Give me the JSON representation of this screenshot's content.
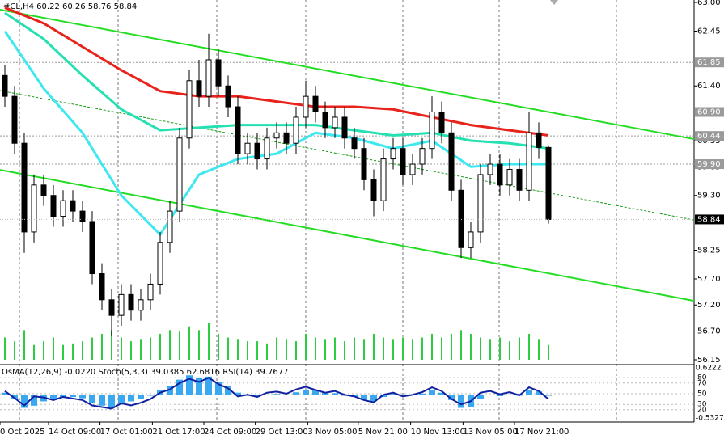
{
  "chart_data": {
    "type": "candlestick",
    "header": "#CL,H4  60.22 60.26 58.76 58.84",
    "indicator_header": "OsMA(12,26,9) -0.0220  Stoch(5,3,3) 39.0385 62.6816  RSI(14) 39.7677",
    "xlim": [
      -0.5,
      71
    ],
    "ylim": [
      56.15,
      63.0
    ],
    "yticks": [
      {
        "value": 63.0,
        "label": "63.00"
      },
      {
        "value": 62.45,
        "label": "62.45"
      },
      {
        "value": 61.4,
        "label": "61.40"
      },
      {
        "value": 60.35,
        "label": "60.35"
      },
      {
        "value": 59.85,
        "label": "59.85"
      },
      {
        "value": 59.3,
        "label": "59.30"
      },
      {
        "value": 58.25,
        "label": "58.25"
      },
      {
        "value": 57.7,
        "label": "57.70"
      },
      {
        "value": 57.2,
        "label": "57.20"
      },
      {
        "value": 56.7,
        "label": "56.70"
      },
      {
        "value": 56.15,
        "label": "56.15"
      }
    ],
    "levels": [
      {
        "value": 61.85,
        "label": "61.85"
      },
      {
        "value": 60.9,
        "label": "60.90"
      },
      {
        "value": 60.44,
        "label": "60.44"
      },
      {
        "value": 59.9,
        "label": "59.90"
      }
    ],
    "last_price": {
      "value": 58.84,
      "label": "58.84"
    },
    "xticks": [
      {
        "value": -0.5,
        "label": "0 Oct 2025"
      },
      {
        "value": 4.5,
        "label": "14 Oct 09:00"
      },
      {
        "value": 9.8,
        "label": "17 Oct 01:00"
      },
      {
        "value": 15.2,
        "label": "21 Oct 17:00"
      },
      {
        "value": 20.5,
        "label": "24 Oct 09:00"
      },
      {
        "value": 25.8,
        "label": "29 Oct 13:00"
      },
      {
        "value": 31.2,
        "label": "3 Nov 05:00"
      },
      {
        "value": 36.4,
        "label": "5 Nov 21:00"
      },
      {
        "value": 41.8,
        "label": "10 Nov 13:00"
      },
      {
        "value": 47.2,
        "label": "13 Nov 05:00"
      },
      {
        "value": 52.5,
        "label": "17 Nov 21:00"
      }
    ],
    "open": [
      61.6,
      61.2,
      60.3,
      58.6,
      59.5,
      59.3,
      58.9,
      59.2,
      59.0,
      58.8,
      57.8,
      57.3,
      57.0,
      57.4,
      57.1,
      57.3,
      57.6,
      58.4,
      59.0,
      60.4,
      61.5,
      61.2,
      61.9,
      61.4,
      61.0,
      60.1,
      60.3,
      60.0,
      60.4,
      60.5,
      60.3,
      60.8,
      61.2,
      60.9,
      60.6,
      60.8,
      60.4,
      60.2,
      59.6,
      59.2,
      60.0,
      60.2,
      59.7,
      59.9,
      60.2,
      60.9,
      60.5,
      59.4,
      58.3,
      58.6,
      59.7,
      59.9,
      59.5,
      59.8,
      59.4,
      60.5,
      60.22
    ],
    "high": [
      61.8,
      61.4,
      60.5,
      59.7,
      59.7,
      59.5,
      59.4,
      59.4,
      59.2,
      59.0,
      58.0,
      57.5,
      57.6,
      57.6,
      57.5,
      57.8,
      58.6,
      59.2,
      60.6,
      61.7,
      61.9,
      62.4,
      62.1,
      61.6,
      61.2,
      60.5,
      60.5,
      60.6,
      60.7,
      60.7,
      61.0,
      61.5,
      61.4,
      61.1,
      61.0,
      61.0,
      60.6,
      60.4,
      59.8,
      60.2,
      60.4,
      60.4,
      60.1,
      60.4,
      61.2,
      61.1,
      60.7,
      59.6,
      58.8,
      59.9,
      60.1,
      60.1,
      60.0,
      60.0,
      60.9,
      60.7,
      60.26
    ],
    "low": [
      61.0,
      60.1,
      58.2,
      58.4,
      59.1,
      58.7,
      58.7,
      58.8,
      58.6,
      57.6,
      57.1,
      56.6,
      56.8,
      56.9,
      56.9,
      57.1,
      57.4,
      58.2,
      58.8,
      60.2,
      61.0,
      61.0,
      61.2,
      60.8,
      59.9,
      59.9,
      59.8,
      59.8,
      60.2,
      60.1,
      60.1,
      60.6,
      60.7,
      60.4,
      60.4,
      60.2,
      60.0,
      59.4,
      58.9,
      59.0,
      59.8,
      59.5,
      59.5,
      59.7,
      60.0,
      60.3,
      59.2,
      58.1,
      58.1,
      58.4,
      59.5,
      59.3,
      59.3,
      59.2,
      59.2,
      60.0,
      58.76
    ],
    "close": [
      61.2,
      60.3,
      58.6,
      59.5,
      59.3,
      58.9,
      59.2,
      59.0,
      58.8,
      57.8,
      57.3,
      57.0,
      57.4,
      57.1,
      57.3,
      57.6,
      58.4,
      59.0,
      60.4,
      61.5,
      61.2,
      61.9,
      61.4,
      61.0,
      60.1,
      60.3,
      60.0,
      60.4,
      60.5,
      60.3,
      60.8,
      61.2,
      60.9,
      60.6,
      60.8,
      60.4,
      60.2,
      59.6,
      59.2,
      60.0,
      60.2,
      59.7,
      59.9,
      60.2,
      60.9,
      60.5,
      59.4,
      58.3,
      58.6,
      59.7,
      59.9,
      59.5,
      59.8,
      59.4,
      60.5,
      60.22,
      58.84
    ],
    "volume": [
      30,
      25,
      40,
      20,
      25,
      30,
      20,
      22,
      25,
      30,
      35,
      40,
      30,
      25,
      28,
      30,
      35,
      40,
      38,
      45,
      40,
      50,
      35,
      30,
      28,
      25,
      25,
      22,
      30,
      28,
      25,
      35,
      30,
      28,
      30,
      25,
      30,
      28,
      35,
      30,
      28,
      30,
      28,
      30,
      35,
      30,
      35,
      40,
      35,
      30,
      28,
      30,
      25,
      30,
      35,
      28,
      20
    ],
    "vlim": [
      0,
      60
    ],
    "volume_color": "#2ecc40",
    "candle_up": "#ffffff",
    "candle_down": "#000000",
    "ma": [
      {
        "color": "#e8231b",
        "x": [
          0,
          4,
          8,
          12,
          16,
          20,
          24,
          28,
          32,
          36,
          40,
          44,
          48,
          52,
          56
        ],
        "values": [
          62.9,
          62.6,
          62.15,
          61.7,
          61.3,
          61.2,
          61.2,
          61.1,
          61.0,
          61.0,
          60.95,
          60.8,
          60.65,
          60.55,
          60.45
        ]
      },
      {
        "color": "#25e0b0",
        "x": [
          0,
          4,
          8,
          12,
          16,
          20,
          24,
          28,
          32,
          36,
          40,
          44,
          48,
          52,
          56
        ],
        "values": [
          62.8,
          62.3,
          61.6,
          60.95,
          60.55,
          60.6,
          60.65,
          60.65,
          60.65,
          60.55,
          60.45,
          60.5,
          60.35,
          60.3,
          60.2
        ]
      },
      {
        "color": "#3de8f0",
        "x": [
          0,
          4,
          8,
          12,
          16,
          20,
          24,
          28,
          32,
          36,
          40,
          44,
          48,
          52,
          56
        ],
        "values": [
          62.45,
          61.35,
          60.5,
          59.3,
          58.55,
          59.7,
          60.0,
          60.1,
          60.5,
          60.4,
          60.2,
          60.35,
          59.85,
          59.9,
          59.9
        ]
      }
    ],
    "channels": [
      {
        "color": "#22dd22",
        "x": [
          -0.5,
          71
        ],
        "values": [
          62.86,
          60.38
        ]
      },
      {
        "color": "#22dd22",
        "x": [
          -0.5,
          71
        ],
        "values": [
          59.79,
          57.28
        ]
      },
      {
        "color": "#119911",
        "x": [
          -0.5,
          71
        ],
        "values": [
          61.31,
          58.83
        ]
      }
    ],
    "osma": [
      0.05,
      -0.1,
      -0.3,
      -0.25,
      -0.15,
      -0.12,
      -0.05,
      -0.05,
      -0.08,
      -0.18,
      -0.25,
      -0.3,
      -0.2,
      -0.15,
      -0.1,
      -0.02,
      0.1,
      0.2,
      0.35,
      0.45,
      0.4,
      0.42,
      0.3,
      0.2,
      0.05,
      -0.02,
      -0.05,
      0,
      0.02,
      0,
      0.06,
      0.12,
      0.1,
      0.05,
      0.04,
      -0.02,
      -0.05,
      -0.12,
      -0.15,
      -0.05,
      0.02,
      -0.02,
      -0.01,
      0.03,
      0.1,
      0.05,
      -0.12,
      -0.3,
      -0.28,
      -0.1,
      0,
      -0.03,
      0.01,
      -0.02,
      0.1,
      0.08,
      -0.022
    ],
    "osma_color": "#3aa8f0",
    "osma_lim": [
      -0.5327,
      0.6222
    ],
    "osma_ticks": [
      {
        "value": 0.6222,
        "label": "0.6222"
      },
      {
        "value": -0.5327,
        "label": "-0.5327"
      }
    ],
    "rsi": [
      55,
      42,
      28,
      45,
      43,
      38,
      44,
      41,
      38,
      28,
      25,
      22,
      32,
      28,
      33,
      40,
      52,
      58,
      70,
      78,
      72,
      80,
      68,
      60,
      45,
      48,
      44,
      52,
      54,
      50,
      58,
      63,
      57,
      52,
      55,
      48,
      45,
      38,
      34,
      48,
      52,
      45,
      48,
      53,
      62,
      55,
      40,
      30,
      36,
      52,
      55,
      49,
      53,
      47,
      62,
      55,
      39.7677
    ],
    "rsi_color": "#1020a0",
    "osc_lim": [
      0,
      100
    ],
    "osc_ticks": [
      80,
      70,
      50,
      30,
      20
    ]
  }
}
